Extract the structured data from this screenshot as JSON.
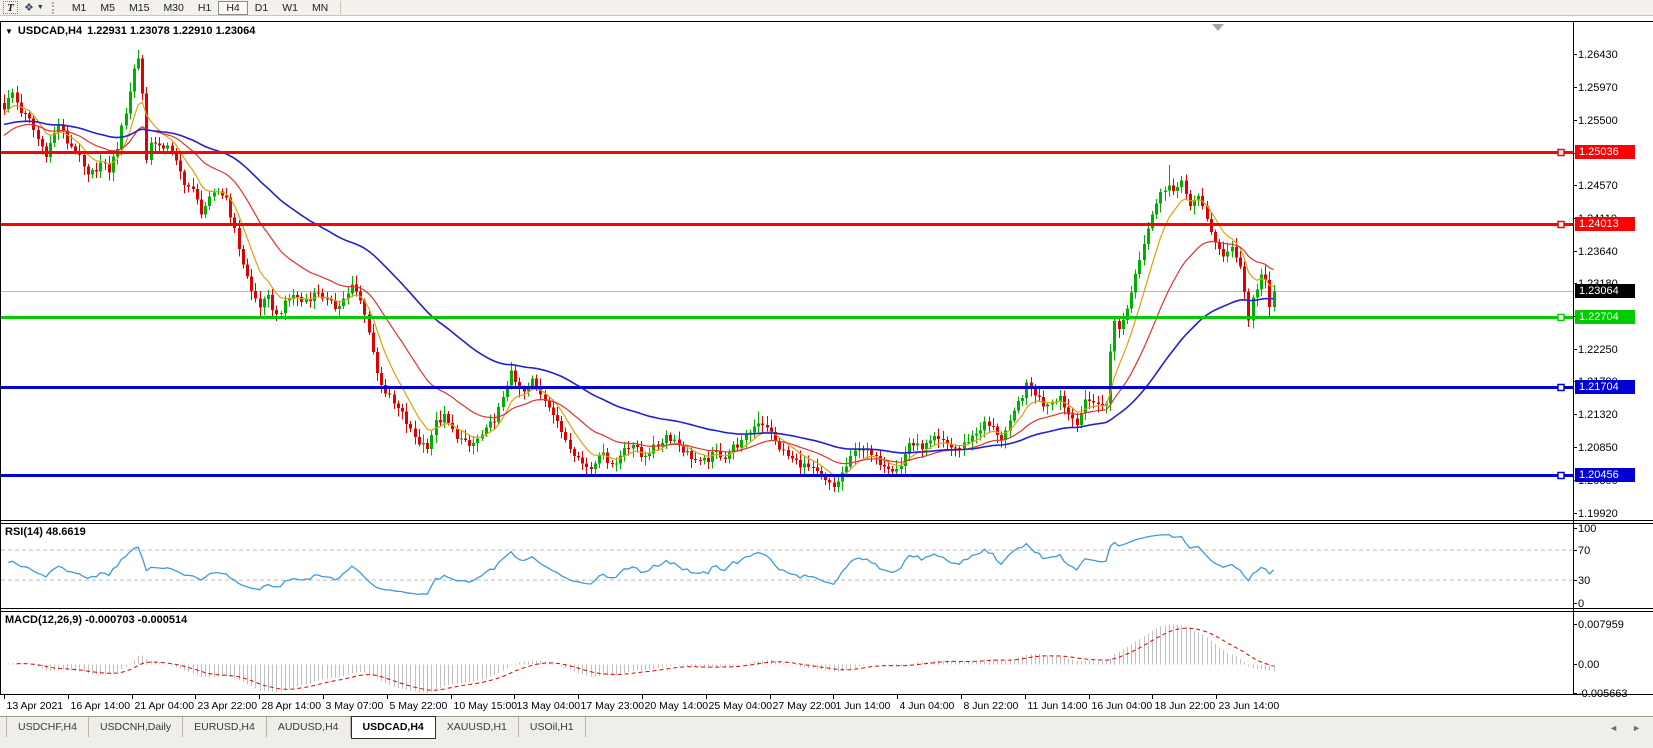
{
  "toolbar": {
    "text_tool_label": "T",
    "draw_icon_glyph": "❖",
    "caret_glyph": "▼",
    "timeframes": [
      "M1",
      "M5",
      "M15",
      "M30",
      "H1",
      "H4",
      "D1",
      "W1",
      "MN"
    ],
    "active_timeframe": "H4"
  },
  "chart": {
    "title": {
      "dropdown_icon": "▼",
      "symbol": "USDCAD,H4",
      "ohlc": "1.22931 1.23078 1.22910 1.23064"
    },
    "price_axis_ticks": [
      "1.26430",
      "1.25970",
      "1.25500",
      "1.25030",
      "1.24570",
      "1.24110",
      "1.23640",
      "1.23180",
      "1.22710",
      "1.22250",
      "1.21790",
      "1.21320",
      "1.20850",
      "1.20390",
      "1.19920"
    ],
    "price_lines": [
      {
        "name": "resistance-1",
        "value": 1.25036,
        "label": "1.25036",
        "color": "#FF0000"
      },
      {
        "name": "resistance-2",
        "value": 1.24013,
        "label": "1.24013",
        "color": "#FF0000"
      },
      {
        "name": "support-green",
        "value": 1.22704,
        "label": "1.22704",
        "color": "#00CC00"
      },
      {
        "name": "support-blue-1",
        "value": 1.21704,
        "label": "1.21704",
        "color": "#0000D2"
      },
      {
        "name": "support-blue-2",
        "value": 1.20456,
        "label": "1.20456",
        "color": "#0000D2"
      }
    ],
    "current_price": {
      "value": 1.23064,
      "label": "1.23064",
      "line_color": "#B8B8B8",
      "label_bg": "#000000"
    },
    "time_axis": [
      "13 Apr 2021",
      "16 Apr 14:00",
      "21 Apr 04:00",
      "23 Apr 22:00",
      "28 Apr 14:00",
      "3 May 07:00",
      "5 May 22:00",
      "10 May 15:00",
      "13 May 04:00",
      "17 May 23:00",
      "20 May 14:00",
      "25 May 04:00",
      "27 May 22:00",
      "1 Jun 14:00",
      "4 Jun 04:00",
      "8 Jun 22:00",
      "11 Jun 14:00",
      "16 Jun 04:00",
      "18 Jun 22:00",
      "23 Jun 14:00"
    ]
  },
  "rsi": {
    "label": "RSI(14) 48.6619",
    "axis": [
      {
        "v": 100,
        "t": "100"
      },
      {
        "v": 70,
        "t": "70"
      },
      {
        "v": 30,
        "t": "30"
      },
      {
        "v": 0,
        "t": "0"
      }
    ],
    "levels": [
      70,
      30
    ],
    "line_color": "#3E9BDB",
    "level_color": "#BDBDBD"
  },
  "macd": {
    "label": "MACD(12,26,9) -0.000703 -0.000514",
    "axis": [
      {
        "v": 0.007959,
        "t": "0.007959"
      },
      {
        "v": 0,
        "t": "0.00"
      },
      {
        "v": -0.005663,
        "t": "-0.005663"
      }
    ],
    "bar_color": "#C0C0C0",
    "signal_color": "#E00000"
  },
  "tabs": {
    "items": [
      "USDCHF,H4",
      "USDCNH,Daily",
      "EURUSD,H4",
      "AUDUSD,H4",
      "USDCAD,H4",
      "XAUUSD,H1",
      "USOil,H1"
    ],
    "active": "USDCAD,H4",
    "scroll_left_icon": "◄",
    "scroll_right_icon": "►"
  },
  "chart_data": {
    "type": "candlestick",
    "symbol": "USDCAD",
    "timeframe": "H4",
    "bars": 304,
    "price_range": [
      1.1982,
      1.269
    ],
    "ohlc_current": {
      "open": 1.22931,
      "high": 1.23078,
      "low": 1.2291,
      "close": 1.23064
    },
    "up_color": "#00AF00",
    "down_color": "#E10000",
    "moving_averages": [
      {
        "period": 8,
        "color": "#E0A010",
        "name": "ma-fast"
      },
      {
        "period": 24,
        "color": "#E03232",
        "name": "ma-mid"
      },
      {
        "period": 60,
        "color": "#2222C8",
        "name": "ma-slow"
      }
    ],
    "rsi_period": 14,
    "rsi_last": 48.6619,
    "macd_params": [
      12,
      26,
      9
    ],
    "macd_last": -0.000703,
    "macd_signal_last": -0.000514,
    "close_keypoints": [
      [
        0,
        1.2568
      ],
      [
        2,
        1.2588
      ],
      [
        4,
        1.2562
      ],
      [
        6,
        1.2549
      ],
      [
        8,
        1.2522
      ],
      [
        10,
        1.2502
      ],
      [
        13,
        1.2544
      ],
      [
        15,
        1.2518
      ],
      [
        17,
        1.2508
      ],
      [
        20,
        1.2468
      ],
      [
        23,
        1.2488
      ],
      [
        25,
        1.2478
      ],
      [
        27,
        1.2512
      ],
      [
        29,
        1.2562
      ],
      [
        31,
        1.2622
      ],
      [
        32,
        1.2638
      ],
      [
        33,
        1.2588
      ],
      [
        34,
        1.2492
      ],
      [
        35,
        1.2522
      ],
      [
        37,
        1.2508
      ],
      [
        39,
        1.2516
      ],
      [
        41,
        1.2488
      ],
      [
        43,
        1.2462
      ],
      [
        45,
        1.2448
      ],
      [
        47,
        1.242
      ],
      [
        49,
        1.2436
      ],
      [
        51,
        1.2448
      ],
      [
        53,
        1.244
      ],
      [
        55,
        1.2392
      ],
      [
        57,
        1.2346
      ],
      [
        59,
        1.2306
      ],
      [
        61,
        1.2286
      ],
      [
        63,
        1.2296
      ],
      [
        65,
        1.2272
      ],
      [
        67,
        1.2288
      ],
      [
        69,
        1.2302
      ],
      [
        71,
        1.2292
      ],
      [
        73,
        1.2298
      ],
      [
        75,
        1.2306
      ],
      [
        77,
        1.2292
      ],
      [
        79,
        1.2284
      ],
      [
        81,
        1.2296
      ],
      [
        83,
        1.2314
      ],
      [
        85,
        1.2292
      ],
      [
        87,
        1.2252
      ],
      [
        89,
        1.219
      ],
      [
        91,
        1.2164
      ],
      [
        93,
        1.2146
      ],
      [
        95,
        1.2132
      ],
      [
        97,
        1.2108
      ],
      [
        99,
        1.2092
      ],
      [
        101,
        1.2088
      ],
      [
        103,
        1.212
      ],
      [
        105,
        1.2128
      ],
      [
        107,
        1.2108
      ],
      [
        109,
        1.2096
      ],
      [
        111,
        1.2086
      ],
      [
        113,
        1.2096
      ],
      [
        115,
        1.2108
      ],
      [
        117,
        1.2126
      ],
      [
        119,
        1.2152
      ],
      [
        121,
        1.2198
      ],
      [
        122,
        1.2172
      ],
      [
        124,
        1.2162
      ],
      [
        126,
        1.218
      ],
      [
        128,
        1.2162
      ],
      [
        130,
        1.2146
      ],
      [
        132,
        1.2118
      ],
      [
        134,
        1.2098
      ],
      [
        136,
        1.2078
      ],
      [
        138,
        1.2062
      ],
      [
        140,
        1.2056
      ],
      [
        142,
        1.2078
      ],
      [
        144,
        1.2068
      ],
      [
        146,
        1.2062
      ],
      [
        148,
        1.2086
      ],
      [
        150,
        1.209
      ],
      [
        152,
        1.2072
      ],
      [
        154,
        1.208
      ],
      [
        156,
        1.2088
      ],
      [
        158,
        1.2102
      ],
      [
        160,
        1.2096
      ],
      [
        162,
        1.2082
      ],
      [
        164,
        1.2072
      ],
      [
        166,
        1.2062
      ],
      [
        168,
        1.2068
      ],
      [
        170,
        1.2078
      ],
      [
        172,
        1.2072
      ],
      [
        174,
        1.2086
      ],
      [
        176,
        1.2092
      ],
      [
        178,
        1.2108
      ],
      [
        180,
        1.2122
      ],
      [
        182,
        1.2116
      ],
      [
        184,
        1.2092
      ],
      [
        186,
        1.2078
      ],
      [
        188,
        1.2068
      ],
      [
        190,
        1.2062
      ],
      [
        192,
        1.2056
      ],
      [
        194,
        1.2048
      ],
      [
        196,
        1.2036
      ],
      [
        198,
        1.2028
      ],
      [
        200,
        1.2048
      ],
      [
        202,
        1.2068
      ],
      [
        204,
        1.2088
      ],
      [
        206,
        1.2078
      ],
      [
        208,
        1.2068
      ],
      [
        210,
        1.2062
      ],
      [
        212,
        1.2056
      ],
      [
        214,
        1.2058
      ],
      [
        216,
        1.2092
      ],
      [
        218,
        1.2086
      ],
      [
        220,
        1.2088
      ],
      [
        222,
        1.2096
      ],
      [
        224,
        1.2092
      ],
      [
        226,
        1.2086
      ],
      [
        228,
        1.2082
      ],
      [
        230,
        1.2096
      ],
      [
        232,
        1.2106
      ],
      [
        234,
        1.2118
      ],
      [
        236,
        1.2112
      ],
      [
        238,
        1.2098
      ],
      [
        240,
        1.2118
      ],
      [
        242,
        1.2148
      ],
      [
        244,
        1.2172
      ],
      [
        246,
        1.2162
      ],
      [
        248,
        1.2146
      ],
      [
        250,
        1.2152
      ],
      [
        252,
        1.2158
      ],
      [
        254,
        1.2132
      ],
      [
        256,
        1.2122
      ],
      [
        258,
        1.2148
      ],
      [
        260,
        1.2152
      ],
      [
        262,
        1.2142
      ],
      [
        263,
        1.2148
      ],
      [
        264,
        1.2225
      ],
      [
        265,
        1.2262
      ],
      [
        266,
        1.2252
      ],
      [
        267,
        1.2268
      ],
      [
        268,
        1.2282
      ],
      [
        270,
        1.2332
      ],
      [
        272,
        1.2378
      ],
      [
        274,
        1.2418
      ],
      [
        276,
        1.2444
      ],
      [
        278,
        1.2462
      ],
      [
        279,
        1.2448
      ],
      [
        281,
        1.2458
      ],
      [
        283,
        1.2432
      ],
      [
        285,
        1.2438
      ],
      [
        287,
        1.2408
      ],
      [
        289,
        1.2378
      ],
      [
        291,
        1.2352
      ],
      [
        293,
        1.2372
      ],
      [
        295,
        1.2342
      ],
      [
        296,
        1.2305
      ],
      [
        297,
        1.2268
      ],
      [
        298,
        1.2295
      ],
      [
        299,
        1.2312
      ],
      [
        300,
        1.233
      ],
      [
        301,
        1.2318
      ],
      [
        302,
        1.2282
      ],
      [
        303,
        1.23064
      ]
    ],
    "wick_extremes": {
      "high": [
        [
          3,
          1.2598
        ],
        [
          32,
          1.2648
        ],
        [
          121,
          1.2206
        ],
        [
          180,
          1.2136
        ],
        [
          244,
          1.218
        ],
        [
          278,
          1.2486
        ]
      ],
      "low": [
        [
          10,
          1.2492
        ],
        [
          65,
          1.2264
        ],
        [
          101,
          1.2076
        ],
        [
          140,
          1.2044
        ],
        [
          198,
          1.2022
        ],
        [
          214,
          1.205
        ],
        [
          297,
          1.2256
        ],
        [
          302,
          1.2268
        ]
      ]
    }
  }
}
